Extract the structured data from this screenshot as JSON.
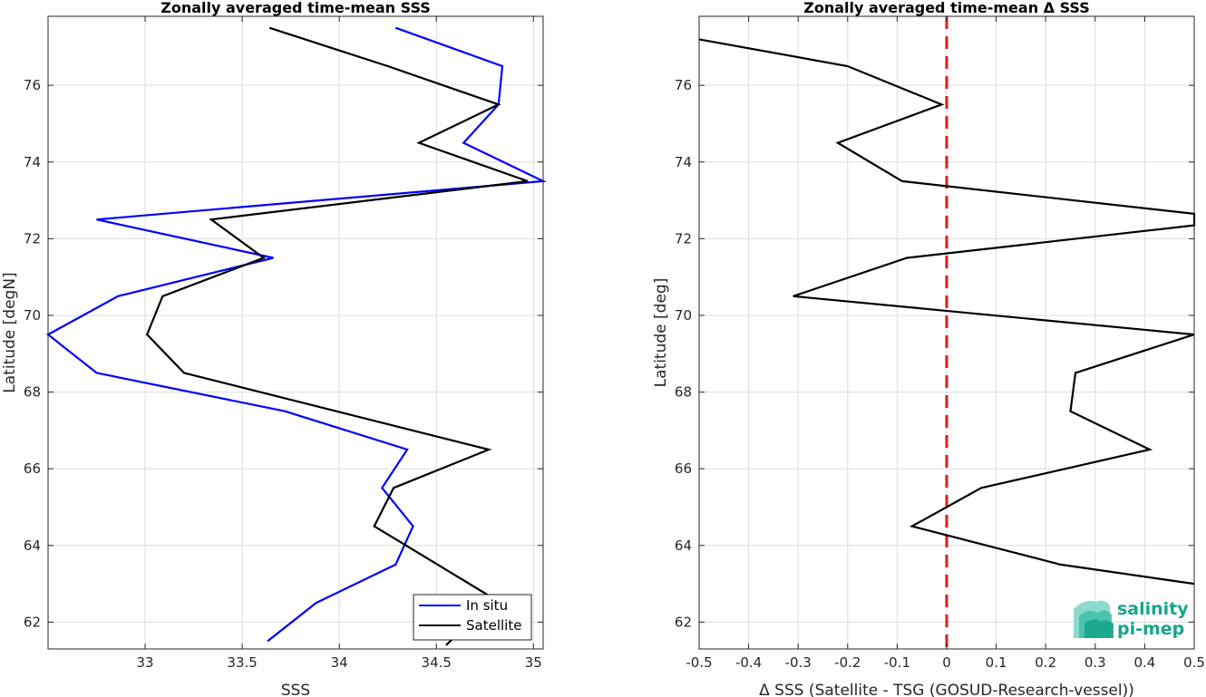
{
  "chart_data": [
    {
      "type": "line",
      "title": "Zonally averaged time-mean SSS",
      "xlabel": "SSS",
      "ylabel": "Latitude [degN]",
      "xlim": [
        32.5,
        35.05
      ],
      "ylim": [
        61.3,
        77.8
      ],
      "xticks": [
        "33",
        "33.5",
        "34",
        "34.5",
        "35"
      ],
      "xtick_values": [
        33,
        33.5,
        34,
        34.5,
        35
      ],
      "yticks": [
        "62",
        "64",
        "66",
        "68",
        "70",
        "72",
        "74",
        "76"
      ],
      "ytick_values": [
        62,
        64,
        66,
        68,
        70,
        72,
        74,
        76
      ],
      "grid": true,
      "legend": "bottom-right",
      "series": [
        {
          "name": "In situ",
          "color": "#0000ff",
          "points": [
            [
              34.29,
              77.5
            ],
            [
              34.84,
              76.5
            ],
            [
              34.82,
              75.5
            ],
            [
              34.64,
              74.5
            ],
            [
              35.05,
              73.5
            ],
            [
              32.75,
              72.5
            ],
            [
              33.66,
              71.5
            ],
            [
              32.86,
              70.5
            ],
            [
              32.5,
              69.5
            ],
            [
              32.75,
              68.5
            ],
            [
              33.72,
              67.5
            ],
            [
              34.35,
              66.5
            ],
            [
              34.22,
              65.5
            ],
            [
              34.38,
              64.5
            ],
            [
              34.29,
              63.5
            ],
            [
              33.88,
              62.5
            ],
            [
              33.63,
              61.5
            ]
          ]
        },
        {
          "name": "Satellite",
          "color": "#000000",
          "points": [
            [
              33.64,
              77.5
            ],
            [
              34.25,
              76.5
            ],
            [
              34.82,
              75.5
            ],
            [
              34.41,
              74.5
            ],
            [
              34.97,
              73.5
            ],
            [
              33.34,
              72.5
            ],
            [
              33.61,
              71.5
            ],
            [
              33.09,
              70.5
            ],
            [
              33.01,
              69.5
            ],
            [
              33.2,
              68.5
            ],
            [
              34.77,
              66.5
            ],
            [
              34.28,
              65.5
            ],
            [
              34.18,
              64.5
            ],
            [
              34.8,
              62.6
            ],
            [
              34.55,
              61.4
            ]
          ]
        }
      ]
    },
    {
      "type": "line",
      "title": "Zonally averaged time-mean Δ SSS",
      "xlabel": "Δ SSS (Satellite - TSG (GOSUD-Research-vessel))",
      "ylabel": "Latitude [deg]",
      "xlim": [
        -0.5,
        0.5
      ],
      "ylim": [
        61.3,
        77.8
      ],
      "xticks": [
        "-0.5",
        "-0.4",
        "-0.3",
        "-0.2",
        "-0.1",
        "0",
        "0.1",
        "0.2",
        "0.3",
        "0.4",
        "0.5"
      ],
      "xtick_values": [
        -0.5,
        -0.4,
        -0.3,
        -0.2,
        -0.1,
        0,
        0.1,
        0.2,
        0.3,
        0.4,
        0.5
      ],
      "yticks": [
        "62",
        "64",
        "66",
        "68",
        "70",
        "72",
        "74",
        "76"
      ],
      "ytick_values": [
        62,
        64,
        66,
        68,
        70,
        72,
        74,
        76
      ],
      "grid": true,
      "reference_line": {
        "x": 0,
        "color": "#e11a1a",
        "style": "dashed"
      },
      "series": [
        {
          "color": "#000000",
          "points": [
            [
              -0.5,
              77.2
            ],
            [
              -0.2,
              76.5
            ],
            [
              -0.01,
              75.5
            ],
            [
              -0.22,
              74.5
            ],
            [
              -0.09,
              73.5
            ],
            [
              0.5,
              72.65
            ],
            [
              0.5,
              72.35
            ],
            [
              -0.08,
              71.5
            ],
            [
              -0.31,
              70.5
            ],
            [
              0.5,
              69.5
            ],
            [
              0.26,
              68.5
            ],
            [
              0.25,
              67.5
            ],
            [
              0.41,
              66.5
            ],
            [
              0.07,
              65.5
            ],
            [
              -0.07,
              64.5
            ],
            [
              0.23,
              63.5
            ],
            [
              0.5,
              63.0
            ]
          ]
        }
      ]
    }
  ],
  "logo": {
    "line1": "salinity",
    "line2": "pi-mep",
    "color": "#17a589"
  }
}
